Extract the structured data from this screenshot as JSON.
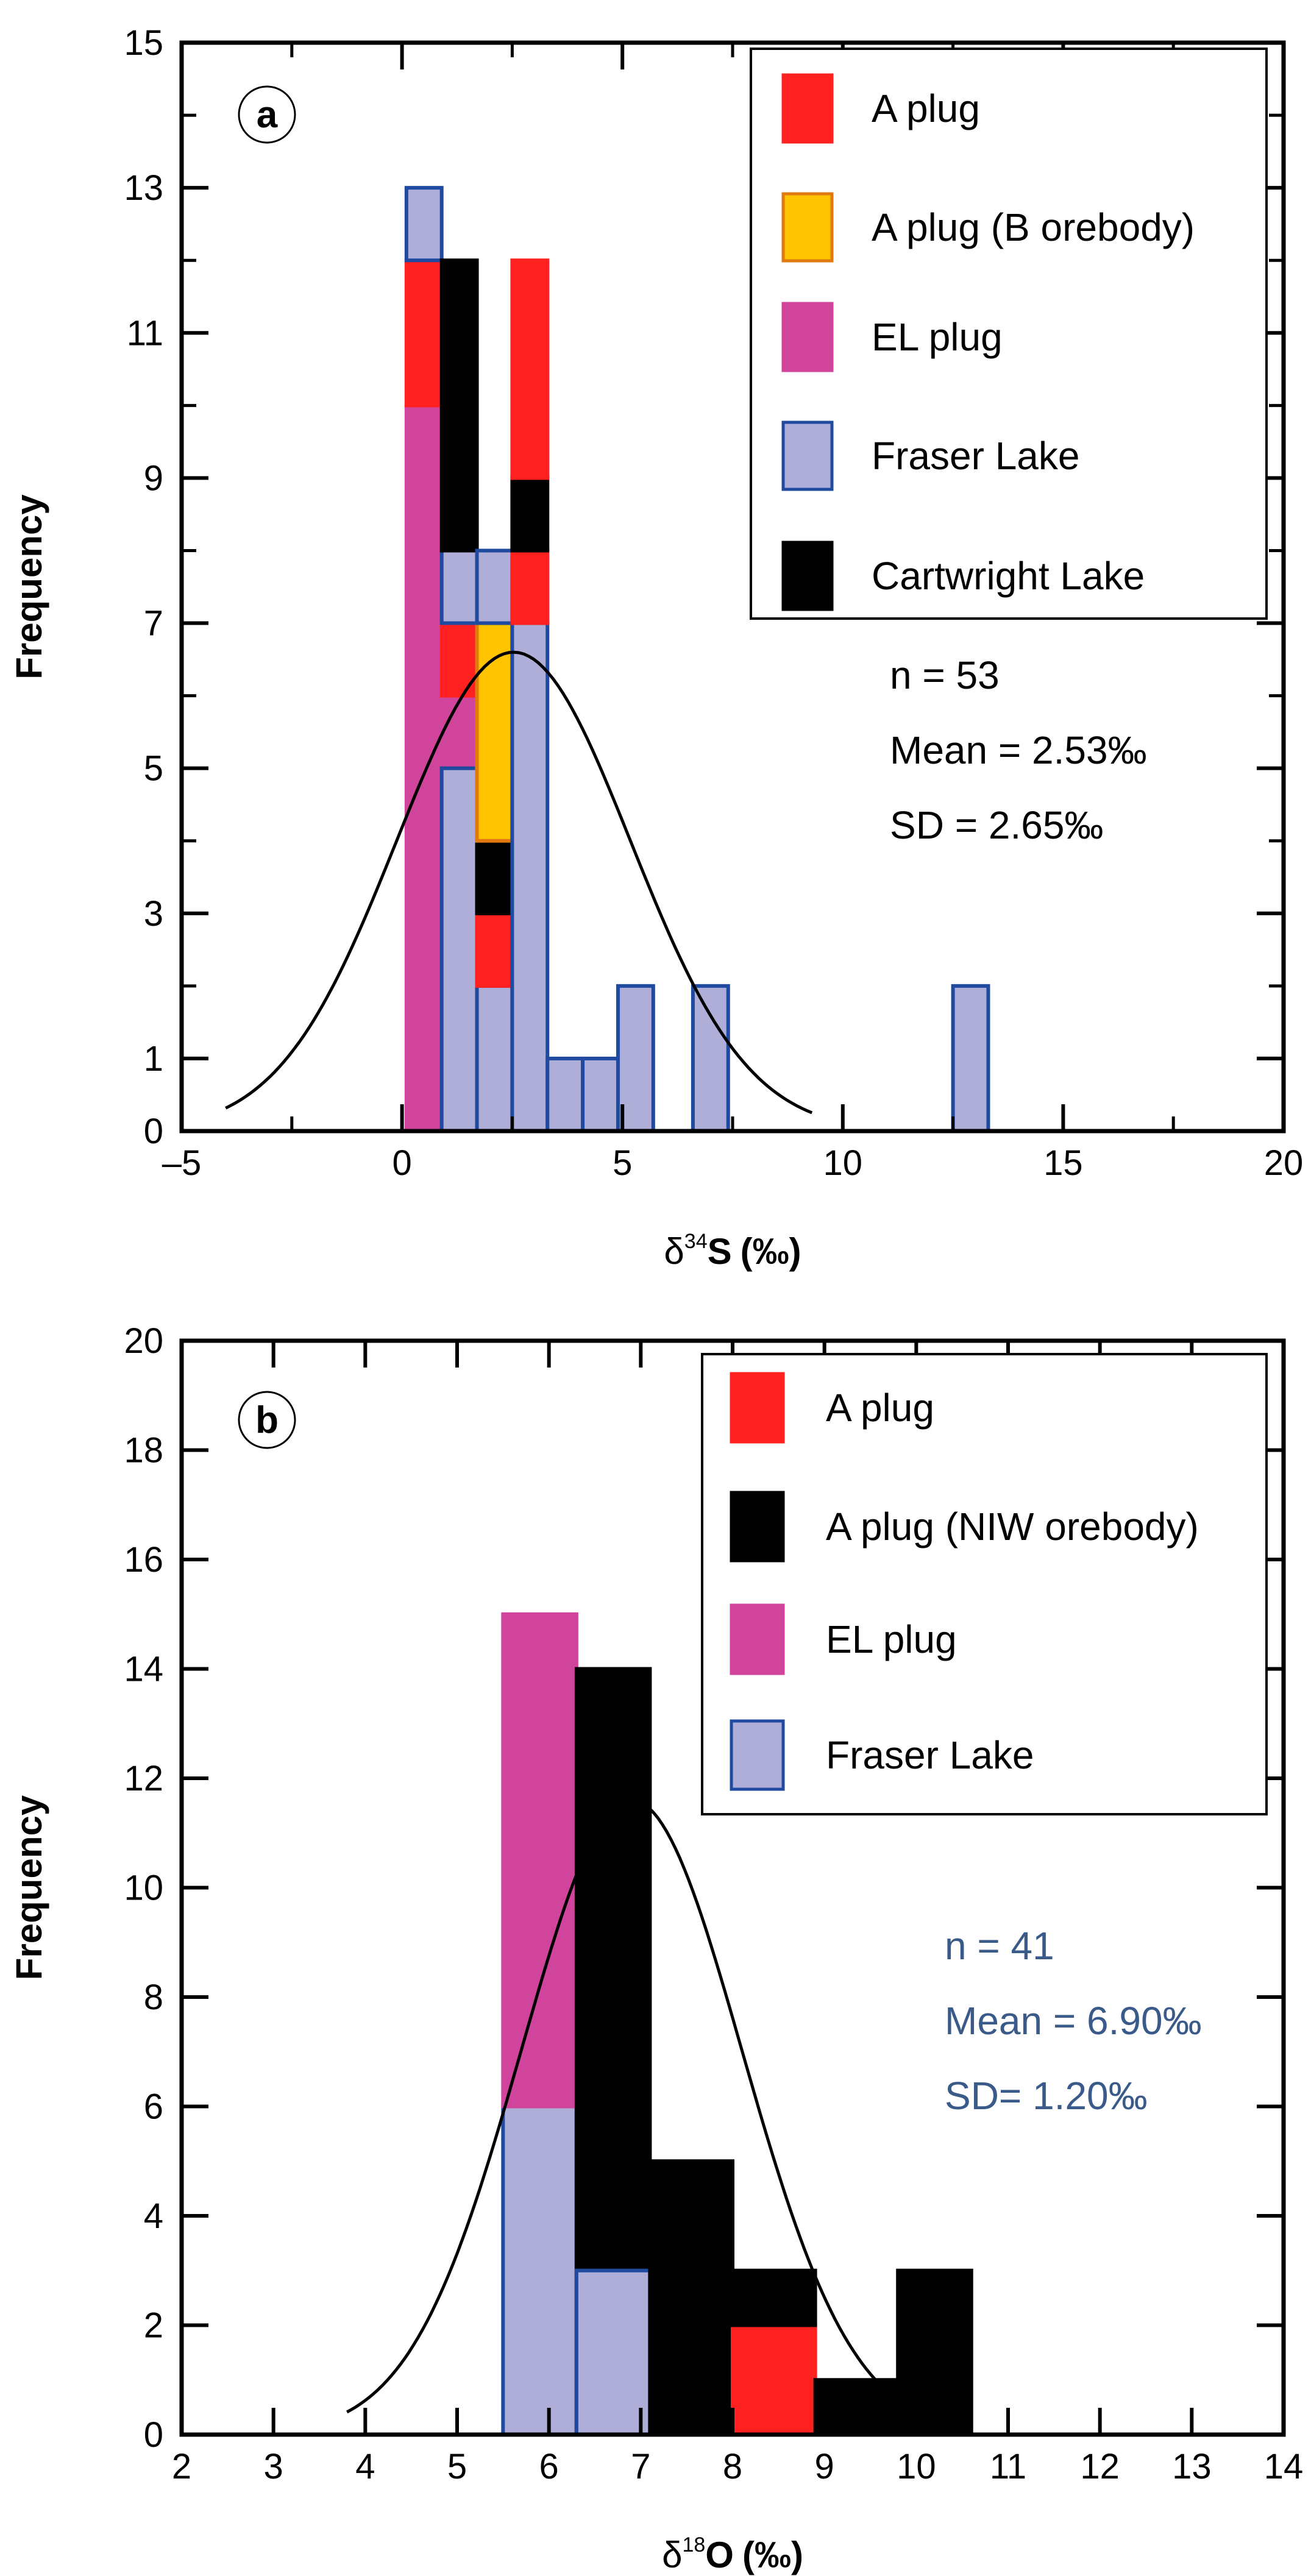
{
  "chart_data": [
    {
      "panel": "a",
      "type": "histogram",
      "stacked": true,
      "xlabel": "δ34S (‰)",
      "xlabel_parts": {
        "symbol": "δ",
        "sup": "34",
        "element": "S",
        "unit": "(‰)"
      },
      "ylabel": "Frequency",
      "xlim": [
        -5,
        20
      ],
      "ylim": [
        0,
        15
      ],
      "xticks": [
        -5,
        0,
        5,
        10,
        15,
        20
      ],
      "xtick_labels": [
        "–5",
        "0",
        "5",
        "10",
        "15",
        "20"
      ],
      "yticks": [
        0,
        1,
        3,
        5,
        7,
        9,
        11,
        13,
        15
      ],
      "ytick_labels": [
        "0",
        "1",
        "3",
        "5",
        "7",
        "9",
        "11",
        "13",
        "15"
      ],
      "series": [
        {
          "name": "A plug",
          "color": "#ff2020",
          "stroke": "#ff2020"
        },
        {
          "name": "A plug (B orebody)",
          "color": "#ffc300",
          "stroke": "#e07a10"
        },
        {
          "name": "EL plug",
          "color": "#d0449c",
          "stroke": "#d0449c"
        },
        {
          "name": "Fraser Lake",
          "color": "#aeaed8",
          "stroke": "#1f4aa0"
        },
        {
          "name": "Cartwright Lake",
          "color": "#000000",
          "stroke": "#000000"
        }
      ],
      "bins": [
        {
          "x0": 0.1,
          "x1": 0.9,
          "stack": [
            {
              "series": "EL plug",
              "from": 0,
              "to": 10
            },
            {
              "series": "A plug",
              "from": 10,
              "to": 12
            },
            {
              "series": "Fraser Lake",
              "from": 12,
              "to": 13
            }
          ]
        },
        {
          "x0": 0.9,
          "x1": 1.7,
          "stack": [
            {
              "series": "EL plug",
              "from": 0,
              "to": 6
            },
            {
              "series": "A plug",
              "from": 6,
              "to": 7
            },
            {
              "series": "Fraser Lake",
              "from": 7,
              "to": 8
            },
            {
              "series": "Cartwright Lake",
              "from": 8,
              "to": 12
            },
            {
              "series": "Fraser Lake",
              "from": 0,
              "to": 5
            }
          ]
        },
        {
          "x0": 1.7,
          "x1": 2.5,
          "stack": [
            {
              "series": "Fraser Lake",
              "from": 0,
              "to": 2
            },
            {
              "series": "A plug",
              "from": 2,
              "to": 3
            },
            {
              "series": "Cartwright Lake",
              "from": 3,
              "to": 4
            },
            {
              "series": "A plug (B orebody)",
              "from": 4,
              "to": 7
            },
            {
              "series": "Fraser Lake",
              "from": 7,
              "to": 8
            }
          ]
        },
        {
          "x0": 2.5,
          "x1": 3.3,
          "stack": [
            {
              "series": "Fraser Lake",
              "from": 0,
              "to": 7
            },
            {
              "series": "A plug",
              "from": 7,
              "to": 8
            },
            {
              "series": "Cartwright Lake",
              "from": 8,
              "to": 9
            },
            {
              "series": "A plug",
              "from": 9,
              "to": 12
            }
          ]
        },
        {
          "x0": 3.3,
          "x1": 4.1,
          "stack": [
            {
              "series": "Fraser Lake",
              "from": 0,
              "to": 1
            }
          ]
        },
        {
          "x0": 4.1,
          "x1": 4.9,
          "stack": [
            {
              "series": "Fraser Lake",
              "from": 0,
              "to": 1
            }
          ]
        },
        {
          "x0": 4.9,
          "x1": 5.7,
          "stack": [
            {
              "series": "Fraser Lake",
              "from": 0,
              "to": 2
            }
          ]
        },
        {
          "x0": 6.6,
          "x1": 7.4,
          "stack": [
            {
              "series": "Fraser Lake",
              "from": 0,
              "to": 2
            }
          ]
        },
        {
          "x0": 12.5,
          "x1": 13.3,
          "stack": [
            {
              "series": "Fraser Lake",
              "from": 0,
              "to": 2
            }
          ]
        }
      ],
      "normal_curve": {
        "mean": 2.53,
        "sd": 2.65,
        "peak": 6.6,
        "x_from": -4,
        "x_to": 9.3
      },
      "stats": [
        "n = 53",
        "Mean = 2.53‰",
        "SD = 2.65‰"
      ],
      "stats_color": "#000000"
    },
    {
      "panel": "b",
      "type": "histogram",
      "stacked": true,
      "xlabel": "δ18O (‰)",
      "xlabel_parts": {
        "symbol": "δ",
        "sup": "18",
        "element": "O",
        "unit": "(‰)"
      },
      "ylabel": "Frequency",
      "xlim": [
        2,
        14
      ],
      "ylim": [
        0,
        20
      ],
      "xticks": [
        2,
        3,
        4,
        5,
        6,
        7,
        8,
        9,
        10,
        11,
        12,
        13,
        14
      ],
      "xtick_labels": [
        "2",
        "3",
        "4",
        "5",
        "6",
        "7",
        "8",
        "9",
        "10",
        "11",
        "12",
        "13",
        "14"
      ],
      "yticks": [
        0,
        2,
        4,
        6,
        8,
        10,
        12,
        14,
        16,
        18,
        20
      ],
      "ytick_labels": [
        "0",
        "2",
        "4",
        "6",
        "8",
        "10",
        "12",
        "14",
        "16",
        "18",
        "20"
      ],
      "series": [
        {
          "name": "A plug",
          "color": "#ff2020",
          "stroke": "#ff2020"
        },
        {
          "name": "A plug (NIW orebody)",
          "color": "#000000",
          "stroke": "#000000"
        },
        {
          "name": "EL plug",
          "color": "#d0449c",
          "stroke": "#d0449c"
        },
        {
          "name": "Fraser Lake",
          "color": "#aeaed8",
          "stroke": "#1f4aa0"
        }
      ],
      "bins": [
        {
          "x0": 5.5,
          "x1": 6.3,
          "stack": [
            {
              "series": "Fraser Lake",
              "from": 0,
              "to": 6
            },
            {
              "series": "EL plug",
              "from": 6,
              "to": 15
            }
          ]
        },
        {
          "x0": 6.3,
          "x1": 7.1,
          "stack": [
            {
              "series": "A plug (NIW orebody)",
              "from": 0,
              "to": 14
            },
            {
              "series": "Fraser Lake",
              "from": 0,
              "to": 3
            }
          ]
        },
        {
          "x0": 7.1,
          "x1": 8.0,
          "stack": [
            {
              "series": "A plug (NIW orebody)",
              "from": 0,
              "to": 5
            }
          ]
        },
        {
          "x0": 8.0,
          "x1": 8.9,
          "stack": [
            {
              "series": "A plug",
              "from": 0,
              "to": 2
            },
            {
              "series": "A plug (NIW orebody)",
              "from": 2,
              "to": 3
            }
          ]
        },
        {
          "x0": 8.9,
          "x1": 9.8,
          "stack": [
            {
              "series": "A plug (NIW orebody)",
              "from": 0,
              "to": 1
            }
          ]
        },
        {
          "x0": 9.8,
          "x1": 10.6,
          "stack": [
            {
              "series": "A plug (NIW orebody)",
              "from": 0,
              "to": 3
            }
          ]
        }
      ],
      "normal_curve": {
        "mean": 6.9,
        "sd": 1.2,
        "peak": 11.6,
        "x_from": 3.8,
        "x_to": 9.6
      },
      "stats": [
        "n = 41",
        "Mean = 6.90‰",
        "SD= 1.20‰"
      ],
      "stats_color": "#3a5a8a"
    }
  ]
}
